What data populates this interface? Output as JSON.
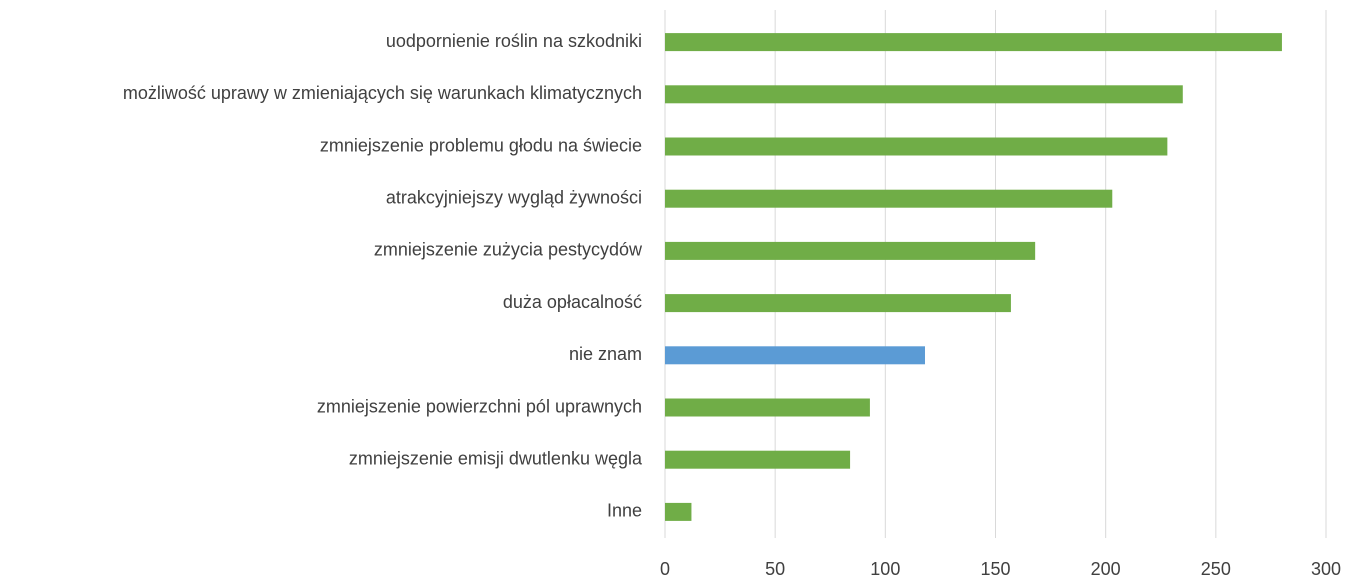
{
  "chart_data": {
    "type": "hbar",
    "categories": [
      "uodpornienie roślin na szkodniki",
      "możliwość uprawy w zmieniających się warunkach klimatycznych",
      "zmniejszenie problemu głodu na świecie",
      "atrakcyjniejszy wygląd żywności",
      "zmniejszenie zużycia pestycydów",
      "duża opłacalność",
      "nie znam",
      "zmniejszenie powierzchni pól uprawnych",
      "zmniejszenie emisji dwutlenku węgla",
      "Inne"
    ],
    "values": [
      280,
      235,
      228,
      203,
      168,
      157,
      118,
      93,
      84,
      12
    ],
    "colors": [
      "#70ad47",
      "#70ad47",
      "#70ad47",
      "#70ad47",
      "#70ad47",
      "#70ad47",
      "#5b9bd5",
      "#70ad47",
      "#70ad47",
      "#70ad47"
    ],
    "xlim": [
      0,
      300
    ],
    "xticks": [
      0,
      50,
      100,
      150,
      200,
      250,
      300
    ],
    "grid": true
  }
}
